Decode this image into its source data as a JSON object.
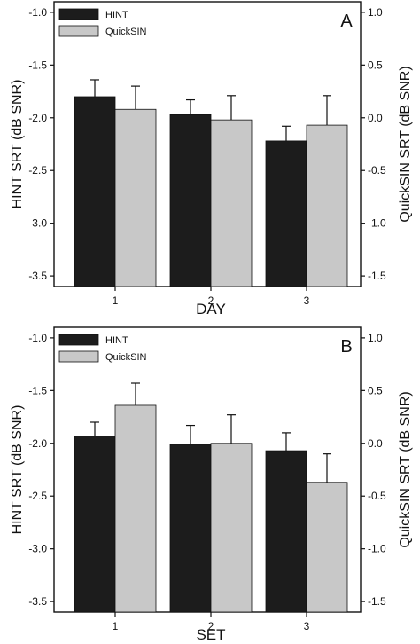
{
  "chart_data": [
    {
      "type": "bar",
      "panel_letter": "A",
      "categories": [
        "1",
        "2",
        "3"
      ],
      "xlabel": "DAY",
      "ylabel_left": "HINT SRT (dB SNR)",
      "ylabel_right": "QuickSIN SRT (dB SNR)",
      "ylim_left": [
        -3.6,
        -0.9
      ],
      "ylim_right": [
        -1.6,
        1.1
      ],
      "yticks_left": [
        "-1.0",
        "-1.5",
        "-2.0",
        "-2.5",
        "-3.0",
        "-3.5"
      ],
      "yticks_right": [
        "1.0",
        "0.5",
        "0.0",
        "-0.5",
        "-1.0",
        "-1.5"
      ],
      "legend_position": "top-left",
      "grid": false,
      "series": [
        {
          "name": "HINT",
          "axis": "left",
          "color": "#1c1c1c",
          "values": [
            -1.8,
            -1.97,
            -2.22
          ],
          "errors": [
            0.16,
            0.14,
            0.14
          ]
        },
        {
          "name": "QuickSIN",
          "axis": "right",
          "color": "#c8c8c8",
          "values": [
            0.08,
            -0.02,
            -0.07
          ],
          "errors": [
            0.22,
            0.23,
            0.28
          ]
        }
      ]
    },
    {
      "type": "bar",
      "panel_letter": "B",
      "categories": [
        "1",
        "2",
        "3"
      ],
      "xlabel": "SET",
      "ylabel_left": "HINT SRT (dB SNR)",
      "ylabel_right": "QuickSIN SRT (dB SNR)",
      "ylim_left": [
        -3.6,
        -0.9
      ],
      "ylim_right": [
        -1.6,
        1.1
      ],
      "yticks_left": [
        "-1.0",
        "-1.5",
        "-2.0",
        "-2.5",
        "-3.0",
        "-3.5"
      ],
      "yticks_right": [
        "1.0",
        "0.5",
        "0.0",
        "-0.5",
        "-1.0",
        "-1.5"
      ],
      "legend_position": "top-left",
      "grid": false,
      "series": [
        {
          "name": "HINT",
          "axis": "left",
          "color": "#1c1c1c",
          "values": [
            -1.93,
            -2.01,
            -2.07
          ],
          "errors": [
            0.13,
            0.18,
            0.17
          ]
        },
        {
          "name": "QuickSIN",
          "axis": "right",
          "color": "#c8c8c8",
          "values": [
            0.36,
            0.0,
            -0.37
          ],
          "errors": [
            0.21,
            0.27,
            0.27
          ]
        }
      ]
    }
  ]
}
